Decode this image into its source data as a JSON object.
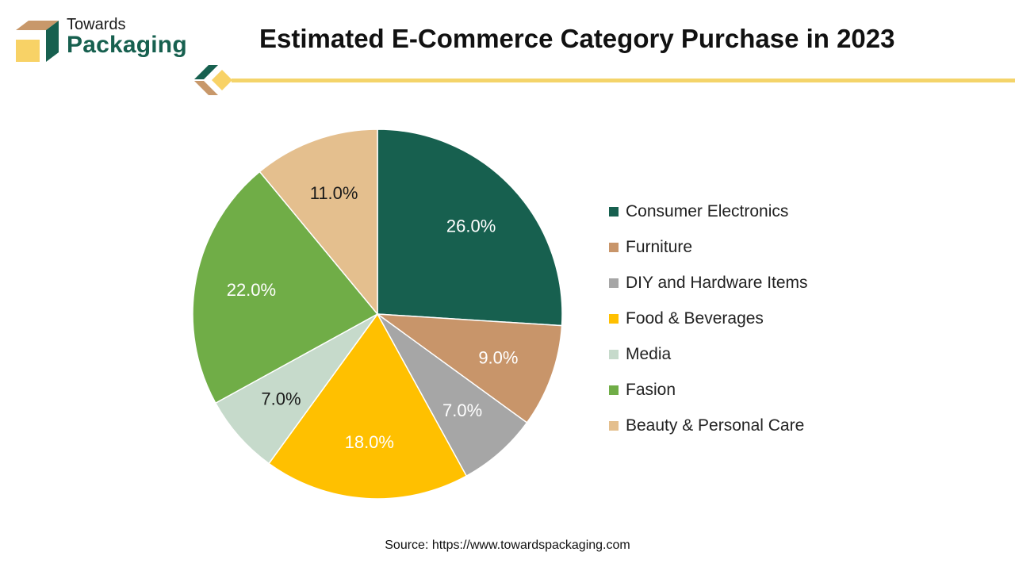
{
  "brand": {
    "line1": "Towards",
    "line2": "Packaging",
    "colors": {
      "green": "#17604f",
      "brown": "#c8986a",
      "yellow": "#f8d266"
    },
    "icon": "box-logo-icon"
  },
  "header": {
    "title": "Estimated E-Commerce Category Purchase in 2023"
  },
  "chart_data": {
    "type": "pie",
    "title": "Estimated E-Commerce Category Purchase in 2023",
    "categories": [
      "Consumer Electronics",
      "Furniture",
      "DIY and Hardware Items",
      "Food & Beverages",
      "Media",
      "Fasion",
      "Beauty & Personal Care"
    ],
    "values": [
      26.0,
      9.0,
      7.0,
      18.0,
      7.0,
      22.0,
      11.0
    ],
    "data_labels": [
      "26.0%",
      "9.0%",
      "7.0%",
      "18.0%",
      "7.0%",
      "22.0%",
      "11.0%"
    ],
    "colors": [
      "#17604f",
      "#c8956a",
      "#a6a6a6",
      "#ffc000",
      "#c6dacb",
      "#70ad47",
      "#e4bf8e"
    ],
    "label_colors": [
      "#ffffff",
      "#ffffff",
      "#ffffff",
      "#ffffff",
      "#1a1a1a",
      "#ffffff",
      "#1a1a1a"
    ],
    "start_angle": "12 o'clock",
    "direction": "clockwise",
    "legend_position": "right"
  },
  "footer": {
    "source": "Source: https://www.towardspackaging.com"
  }
}
